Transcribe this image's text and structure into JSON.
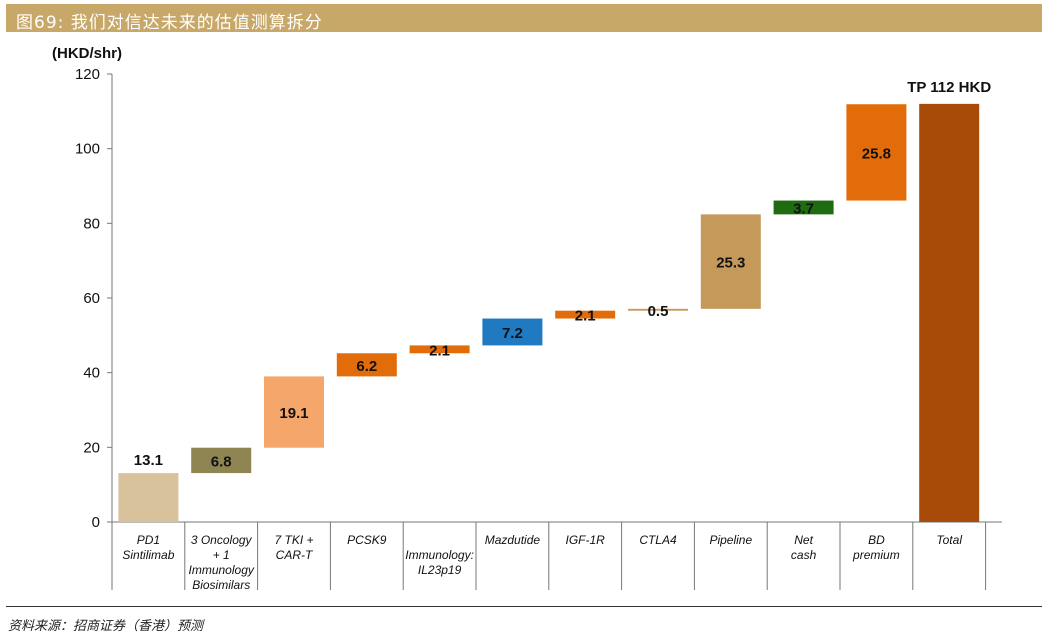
{
  "header": {
    "title": "图69: 我们对信达未来的估值测算拆分"
  },
  "footer": {
    "source": "资料来源：招商证券（香港）预测"
  },
  "chart_data": {
    "type": "bar",
    "subtype": "waterfall",
    "ylabel": "(HKD/shr)",
    "ylim": [
      0,
      120
    ],
    "yticks": [
      0,
      20,
      40,
      60,
      80,
      100,
      120
    ],
    "grid": false,
    "categories": [
      [
        "PD1",
        "Sintilimab"
      ],
      [
        "3 Oncology",
        "+ 1",
        "Immunology",
        "Biosimilars"
      ],
      [
        "7 TKI +",
        "CAR-T"
      ],
      [
        "PCSK9"
      ],
      [
        "",
        "Immunology:",
        "IL23p19"
      ],
      [
        "Mazdutide"
      ],
      [
        "IGF-1R"
      ],
      [
        "CTLA4"
      ],
      [
        "Pipeline"
      ],
      [
        "Net",
        "cash"
      ],
      [
        "BD",
        "premium"
      ],
      [
        "Total"
      ]
    ],
    "values": [
      13.1,
      6.8,
      19.1,
      6.2,
      2.1,
      7.2,
      2.1,
      0.5,
      25.3,
      3.7,
      25.8,
      112
    ],
    "value_labels": [
      "13.1",
      "6.8",
      "19.1",
      "6.2",
      "2.1",
      "7.2",
      "2.1",
      "0.5",
      "25.3",
      "3.7",
      "25.8",
      "TP 112 HKD"
    ],
    "is_total": [
      false,
      false,
      false,
      false,
      false,
      false,
      false,
      false,
      false,
      false,
      false,
      true
    ],
    "colors": [
      "#d8c29c",
      "#8f8552",
      "#f5a66b",
      "#e36c0a",
      "#e36c0a",
      "#1f7ac2",
      "#e36c0a",
      "#c4995a",
      "#c4995a",
      "#1e6b12",
      "#e36c0a",
      "#a84a08"
    ],
    "label_colors": [
      "#111111",
      "#111111",
      "#111111",
      "#111111",
      "#111111",
      "#111111",
      "#111111",
      "#111111",
      "#111111",
      "#111111",
      "#111111",
      "#111111"
    ]
  }
}
